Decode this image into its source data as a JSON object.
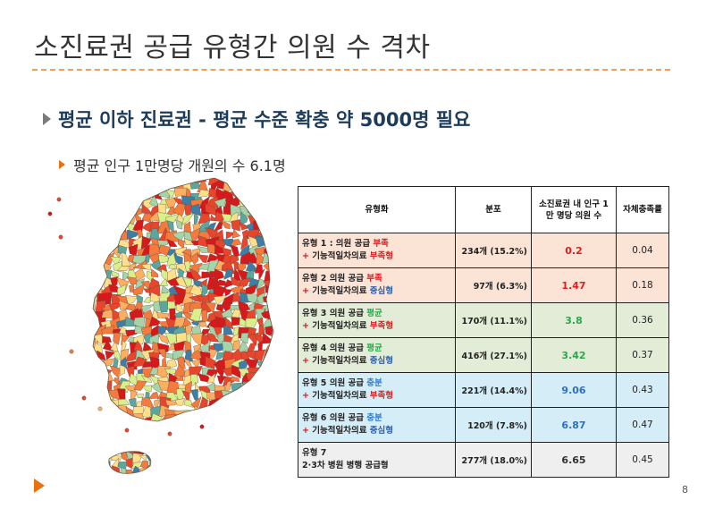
{
  "slide": {
    "title": "소진료권 공급 유형간 의원 수 격차",
    "bullet1": "평균 이하 진료권 - 평균 수준 확충 약 5000명 필요",
    "bullet2": "평균 인구 1만명당 개원의 수 6.1명",
    "page_number": "8"
  },
  "table": {
    "headers": [
      "유형화",
      "분포",
      "소진료권 내 인구 1만 명당 의원 수",
      "자체충족률"
    ],
    "rows": [
      {
        "line1_prefix": "유형 1 : 의원 공급 ",
        "line1_tag": "부족",
        "line1_tag_color": "#e02020",
        "line2_plus": "+ ",
        "line2_prefix": "기능적일차의료 ",
        "line2_tag": "부족형",
        "line2_tag_color": "#e02020",
        "distribution": "234개 (15.2%)",
        "per10k": "0.2",
        "per10k_color": "#e02020",
        "self_rate": "0.04",
        "bg": "#fbe3d6"
      },
      {
        "line1_prefix": "유형 2 의원 공급 ",
        "line1_tag": "부족",
        "line1_tag_color": "#e02020",
        "line2_plus": "+ ",
        "line2_prefix": "기능적일차의료 ",
        "line2_tag": "중심형",
        "line2_tag_color": "#2e5fa8",
        "distribution": "97개 (6.3%)",
        "per10k": "1.47",
        "per10k_color": "#e02020",
        "self_rate": "0.18",
        "bg": "#fbe3d6"
      },
      {
        "line1_prefix": "유형 3 의원 공급 ",
        "line1_tag": "평균",
        "line1_tag_color": "#2aa84a",
        "line2_plus": "+ ",
        "line2_prefix": "기능적일차의료 ",
        "line2_tag": "부족형",
        "line2_tag_color": "#e02020",
        "distribution": "170개 (11.1%)",
        "per10k": "3.8",
        "per10k_color": "#2aa84a",
        "self_rate": "0.36",
        "bg": "#e3ecd7"
      },
      {
        "line1_prefix": "유형 4 의원 공급 ",
        "line1_tag": "평균",
        "line1_tag_color": "#2aa84a",
        "line2_plus": "+ ",
        "line2_prefix": "기능적일차의료 ",
        "line2_tag": "중심형",
        "line2_tag_color": "#2e5fa8",
        "distribution": "416개 (27.1%)",
        "per10k": "3.42",
        "per10k_color": "#2aa84a",
        "self_rate": "0.37",
        "bg": "#e3ecd7"
      },
      {
        "line1_prefix": "유형 5 의원 공급 ",
        "line1_tag": "충분",
        "line1_tag_color": "#2f7fd0",
        "line2_plus": "+ ",
        "line2_prefix": "기능적일차의료 ",
        "line2_tag": "부족형",
        "line2_tag_color": "#e02020",
        "distribution": "221개 (14.4%)",
        "per10k": "9.06",
        "per10k_color": "#2f6fc0",
        "self_rate": "0.43",
        "bg": "#d5edf7"
      },
      {
        "line1_prefix": "유형 6 의원 공급 ",
        "line1_tag": "충분",
        "line1_tag_color": "#2f7fd0",
        "line2_plus": "+ ",
        "line2_prefix": "기능적일차의료 ",
        "line2_tag": "중심형",
        "line2_tag_color": "#2e5fa8",
        "distribution": "120개 (7.8%)",
        "per10k": "6.87",
        "per10k_color": "#2f6fc0",
        "self_rate": "0.47",
        "bg": "#d5edf7"
      },
      {
        "line1_prefix": "유형 7",
        "line1_tag": "",
        "line1_tag_color": "#222222",
        "line2_plus": "",
        "line2_prefix": "2·3차 병원 병행 공급형",
        "line2_tag": "",
        "line2_tag_color": "#222222",
        "distribution": "277개 (18.0%)",
        "per10k": "6.65",
        "per10k_color": "#333333",
        "self_rate": "0.45",
        "bg": "#efefef"
      }
    ]
  },
  "map": {
    "palette": [
      "#d7191c",
      "#e8452d",
      "#f47a3e",
      "#fdae61",
      "#fee08b",
      "#d9ef8b",
      "#a6d4a8",
      "#5aa7a0",
      "#3d7ea6"
    ]
  }
}
